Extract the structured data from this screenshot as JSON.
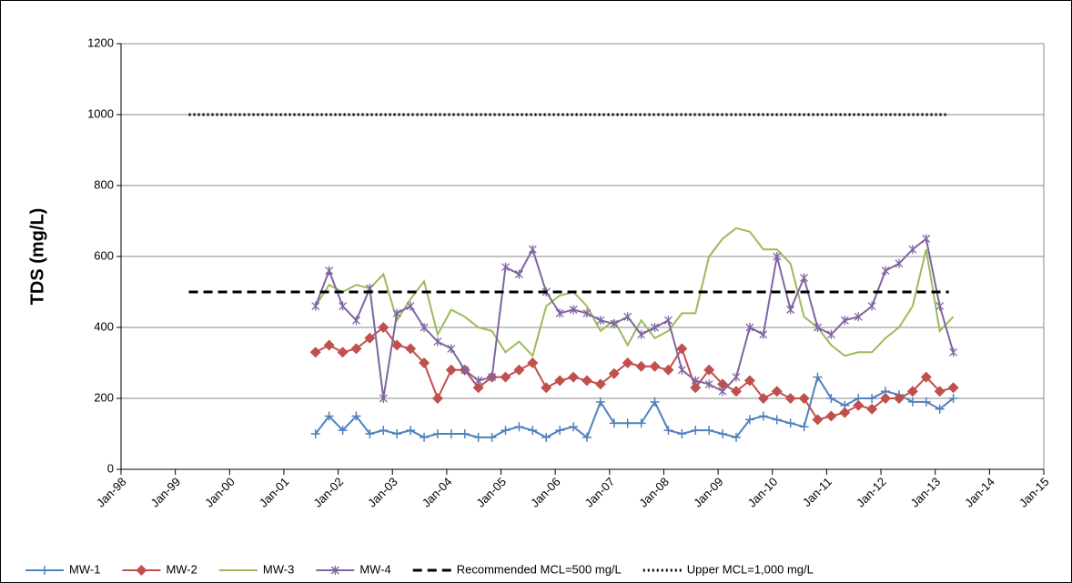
{
  "chart_data": {
    "type": "line",
    "y_label": "TDS (mg/L)",
    "ylim": [
      0,
      1200
    ],
    "yticks": [
      0,
      200,
      400,
      600,
      800,
      1000,
      1200
    ],
    "grid": true,
    "legend": "bottom",
    "xlim": [
      "1998-01",
      "2015-01"
    ],
    "xticks": [
      {
        "value": "1998-01",
        "label": "Jan-98"
      },
      {
        "value": "1999-01",
        "label": "Jan-99"
      },
      {
        "value": "2000-01",
        "label": "Jan-00"
      },
      {
        "value": "2001-01",
        "label": "Jan-01"
      },
      {
        "value": "2002-01",
        "label": "Jan-02"
      },
      {
        "value": "2003-01",
        "label": "Jan-03"
      },
      {
        "value": "2004-01",
        "label": "Jan-04"
      },
      {
        "value": "2005-01",
        "label": "Jan-05"
      },
      {
        "value": "2006-01",
        "label": "Jan-06"
      },
      {
        "value": "2007-01",
        "label": "Jan-07"
      },
      {
        "value": "2008-01",
        "label": "Jan-08"
      },
      {
        "value": "2009-01",
        "label": "Jan-09"
      },
      {
        "value": "2010-01",
        "label": "Jan-10"
      },
      {
        "value": "2011-01",
        "label": "Jan-11"
      },
      {
        "value": "2012-01",
        "label": "Jan-12"
      },
      {
        "value": "2013-01",
        "label": "Jan-13"
      },
      {
        "value": "2014-01",
        "label": "Jan-14"
      },
      {
        "value": "2015-01",
        "label": "Jan-15"
      }
    ],
    "x": [
      "2001-08",
      "2001-11",
      "2002-02",
      "2002-05",
      "2002-08",
      "2002-11",
      "2003-02",
      "2003-05",
      "2003-08",
      "2003-11",
      "2004-02",
      "2004-05",
      "2004-08",
      "2004-11",
      "2005-02",
      "2005-05",
      "2005-08",
      "2005-11",
      "2006-02",
      "2006-05",
      "2006-08",
      "2006-11",
      "2007-02",
      "2007-05",
      "2007-08",
      "2007-11",
      "2008-02",
      "2008-05",
      "2008-08",
      "2008-11",
      "2009-02",
      "2009-05",
      "2009-08",
      "2009-11",
      "2010-02",
      "2010-05",
      "2010-08",
      "2010-11",
      "2011-02",
      "2011-05",
      "2011-08",
      "2011-11",
      "2012-02",
      "2012-05",
      "2012-08",
      "2012-11",
      "2013-02",
      "2013-05"
    ],
    "series": [
      {
        "name": "MW-1",
        "color": "#4f81bd",
        "marker": "plus",
        "values": [
          100,
          150,
          110,
          150,
          100,
          110,
          100,
          110,
          90,
          100,
          100,
          100,
          90,
          90,
          110,
          120,
          110,
          90,
          110,
          120,
          90,
          190,
          130,
          130,
          130,
          190,
          110,
          100,
          110,
          110,
          100,
          90,
          140,
          150,
          140,
          130,
          120,
          260,
          200,
          180,
          200,
          200,
          220,
          210,
          190,
          190,
          170,
          200
        ]
      },
      {
        "name": "MW-2",
        "color": "#c0504d",
        "marker": "diamond",
        "values": [
          330,
          350,
          330,
          340,
          370,
          400,
          350,
          340,
          300,
          200,
          280,
          280,
          230,
          260,
          260,
          280,
          300,
          230,
          250,
          260,
          250,
          240,
          270,
          300,
          290,
          290,
          280,
          340,
          230,
          280,
          240,
          220,
          250,
          200,
          220,
          200,
          200,
          140,
          150,
          160,
          180,
          170,
          200,
          200,
          220,
          260,
          220,
          230
        ]
      },
      {
        "name": "MW-3",
        "color": "#9bbb59",
        "marker": "none",
        "values": [
          460,
          520,
          500,
          520,
          510,
          550,
          420,
          480,
          530,
          380,
          450,
          430,
          400,
          390,
          330,
          360,
          320,
          460,
          490,
          500,
          460,
          390,
          420,
          350,
          420,
          370,
          390,
          440,
          440,
          600,
          650,
          680,
          670,
          620,
          620,
          580,
          430,
          400,
          350,
          320,
          330,
          330,
          370,
          400,
          460,
          620,
          390,
          430
        ]
      },
      {
        "name": "MW-4",
        "color": "#8064a2",
        "marker": "star",
        "values": [
          460,
          560,
          460,
          420,
          510,
          200,
          440,
          460,
          400,
          360,
          340,
          280,
          250,
          260,
          570,
          550,
          620,
          500,
          440,
          450,
          440,
          420,
          410,
          430,
          380,
          400,
          420,
          280,
          250,
          240,
          220,
          260,
          400,
          380,
          600,
          450,
          540,
          400,
          380,
          420,
          430,
          460,
          560,
          580,
          620,
          650,
          460,
          330
        ]
      },
      {
        "name": "Recommended MCL=500 mg/L",
        "color": "#000000",
        "style": "dashed",
        "x": [
          "1999-04",
          "2013-04"
        ],
        "values": [
          500,
          500
        ]
      },
      {
        "name": "Upper MCL=1,000 mg/L",
        "color": "#000000",
        "style": "dotted",
        "x": [
          "1999-04",
          "2013-04"
        ],
        "values": [
          1000,
          1000
        ]
      }
    ]
  }
}
